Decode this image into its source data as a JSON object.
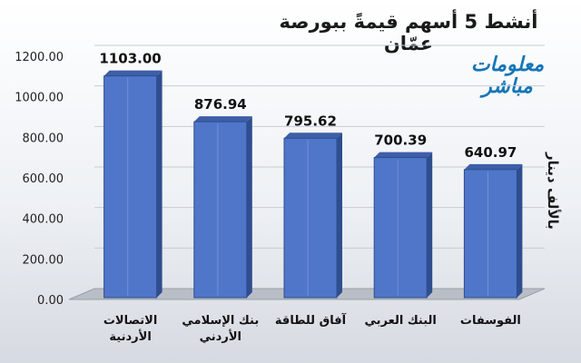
{
  "chart_data": {
    "type": "bar",
    "title": "أنشط 5 أسهم قيمةً ببورصة عمّان",
    "unit_label": "بالألف دينار",
    "categories": [
      [
        "الاتصالات",
        "الأردنية"
      ],
      [
        "بنك الإسلامي",
        "الأردني"
      ],
      [
        "آفاق للطاقة"
      ],
      [
        "البنك العربي"
      ],
      [
        "الفوسفات"
      ]
    ],
    "values": [
      1103.0,
      876.94,
      795.62,
      700.39,
      640.97
    ],
    "data_labels": [
      "1103.00",
      "876.94",
      "795.62",
      "700.39",
      "640.97"
    ],
    "ylim": [
      0,
      1200
    ],
    "yticks": [
      0,
      200,
      400,
      600,
      800,
      1000,
      1200
    ],
    "ytick_labels": [
      "0.00",
      "200.00",
      "400.00",
      "600.00",
      "800.00",
      "1000.00",
      "1200.00"
    ],
    "grid": true,
    "bar_color": "#4f76c8"
  },
  "logo": {
    "line1": "معلومات",
    "line2": "مباشر"
  }
}
